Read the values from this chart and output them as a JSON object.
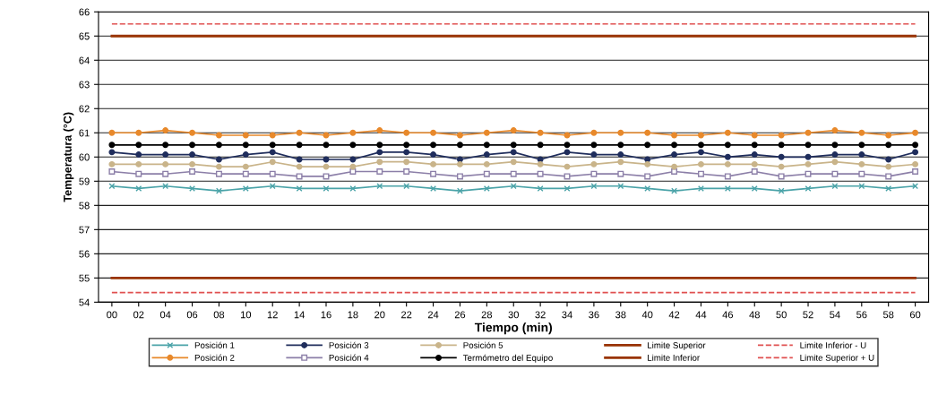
{
  "chart_data": {
    "type": "line",
    "xlabel": "Tiempo (min)",
    "ylabel": "Temperatura (°C)",
    "categories": [
      "00",
      "02",
      "04",
      "06",
      "08",
      "10",
      "12",
      "14",
      "16",
      "18",
      "20",
      "22",
      "24",
      "26",
      "28",
      "30",
      "32",
      "34",
      "36",
      "38",
      "40",
      "42",
      "44",
      "46",
      "48",
      "50",
      "52",
      "54",
      "56",
      "58",
      "60"
    ],
    "ylim": [
      54,
      66
    ],
    "yticks": [
      54,
      55,
      56,
      57,
      58,
      59,
      60,
      61,
      62,
      63,
      64,
      65,
      66
    ],
    "grid": "y",
    "legend": "bottom",
    "series": [
      {
        "name": "Posición 1",
        "color": "#4aa3a8",
        "marker": "cross",
        "values": [
          58.8,
          58.7,
          58.8,
          58.7,
          58.6,
          58.7,
          58.8,
          58.7,
          58.7,
          58.7,
          58.8,
          58.8,
          58.7,
          58.6,
          58.7,
          58.8,
          58.7,
          58.7,
          58.8,
          58.8,
          58.7,
          58.6,
          58.7,
          58.7,
          58.7,
          58.6,
          58.7,
          58.8,
          58.8,
          58.7,
          58.8
        ]
      },
      {
        "name": "Posición 2",
        "color": "#e8892b",
        "marker": "circle",
        "values": [
          61.0,
          61.0,
          61.1,
          61.0,
          60.9,
          60.9,
          60.9,
          61.0,
          60.9,
          61.0,
          61.1,
          61.0,
          61.0,
          60.9,
          61.0,
          61.1,
          61.0,
          60.9,
          61.0,
          61.0,
          61.0,
          60.9,
          60.9,
          61.0,
          60.9,
          60.9,
          61.0,
          61.1,
          61.0,
          60.9,
          61.0
        ]
      },
      {
        "name": "Posición 3",
        "color": "#1f2d5c",
        "marker": "circle",
        "values": [
          60.2,
          60.1,
          60.1,
          60.1,
          59.9,
          60.1,
          60.2,
          59.9,
          59.9,
          59.9,
          60.2,
          60.2,
          60.1,
          59.9,
          60.1,
          60.2,
          59.9,
          60.2,
          60.1,
          60.1,
          59.9,
          60.1,
          60.2,
          60.0,
          60.1,
          60.0,
          60.0,
          60.1,
          60.1,
          59.9,
          60.2
        ]
      },
      {
        "name": "Posición 4",
        "color": "#8c7fa8",
        "marker": "square",
        "values": [
          59.4,
          59.3,
          59.3,
          59.4,
          59.3,
          59.3,
          59.3,
          59.2,
          59.2,
          59.4,
          59.4,
          59.4,
          59.3,
          59.2,
          59.3,
          59.3,
          59.3,
          59.2,
          59.3,
          59.3,
          59.2,
          59.4,
          59.3,
          59.2,
          59.4,
          59.2,
          59.3,
          59.3,
          59.3,
          59.2,
          59.4
        ]
      },
      {
        "name": "Posición 5",
        "color": "#c9b48a",
        "marker": "circle",
        "values": [
          59.7,
          59.7,
          59.7,
          59.7,
          59.6,
          59.6,
          59.8,
          59.6,
          59.6,
          59.6,
          59.8,
          59.8,
          59.7,
          59.7,
          59.7,
          59.8,
          59.7,
          59.6,
          59.7,
          59.8,
          59.7,
          59.6,
          59.7,
          59.7,
          59.7,
          59.6,
          59.7,
          59.8,
          59.7,
          59.6,
          59.7
        ]
      },
      {
        "name": "Termómetro del Equipo",
        "color": "#000000",
        "marker": "circle",
        "values": [
          60.5,
          60.5,
          60.5,
          60.5,
          60.5,
          60.5,
          60.5,
          60.5,
          60.5,
          60.5,
          60.5,
          60.5,
          60.5,
          60.5,
          60.5,
          60.5,
          60.5,
          60.5,
          60.5,
          60.5,
          60.5,
          60.5,
          60.5,
          60.5,
          60.5,
          60.5,
          60.5,
          60.5,
          60.5,
          60.5,
          60.5
        ]
      },
      {
        "name": "Limite Superior",
        "color": "#993300",
        "marker": "none",
        "values": [
          65,
          65,
          65,
          65,
          65,
          65,
          65,
          65,
          65,
          65,
          65,
          65,
          65,
          65,
          65,
          65,
          65,
          65,
          65,
          65,
          65,
          65,
          65,
          65,
          65,
          65,
          65,
          65,
          65,
          65,
          65
        ]
      },
      {
        "name": "Limite Inferior",
        "color": "#993300",
        "marker": "none",
        "values": [
          55,
          55,
          55,
          55,
          55,
          55,
          55,
          55,
          55,
          55,
          55,
          55,
          55,
          55,
          55,
          55,
          55,
          55,
          55,
          55,
          55,
          55,
          55,
          55,
          55,
          55,
          55,
          55,
          55,
          55,
          55
        ]
      },
      {
        "name": "Limite Inferior - U",
        "color": "#e05050",
        "marker": "none",
        "line_style": "dashed",
        "values": [
          54.4,
          54.4,
          54.4,
          54.4,
          54.4,
          54.4,
          54.4,
          54.4,
          54.4,
          54.4,
          54.4,
          54.4,
          54.4,
          54.4,
          54.4,
          54.4,
          54.4,
          54.4,
          54.4,
          54.4,
          54.4,
          54.4,
          54.4,
          54.4,
          54.4,
          54.4,
          54.4,
          54.4,
          54.4,
          54.4,
          54.4
        ]
      },
      {
        "name": "Limite Superior + U",
        "color": "#e05050",
        "marker": "none",
        "line_style": "dashed",
        "values": [
          65.5,
          65.5,
          65.5,
          65.5,
          65.5,
          65.5,
          65.5,
          65.5,
          65.5,
          65.5,
          65.5,
          65.5,
          65.5,
          65.5,
          65.5,
          65.5,
          65.5,
          65.5,
          65.5,
          65.5,
          65.5,
          65.5,
          65.5,
          65.5,
          65.5,
          65.5,
          65.5,
          65.5,
          65.5,
          65.5,
          65.5
        ]
      }
    ]
  }
}
